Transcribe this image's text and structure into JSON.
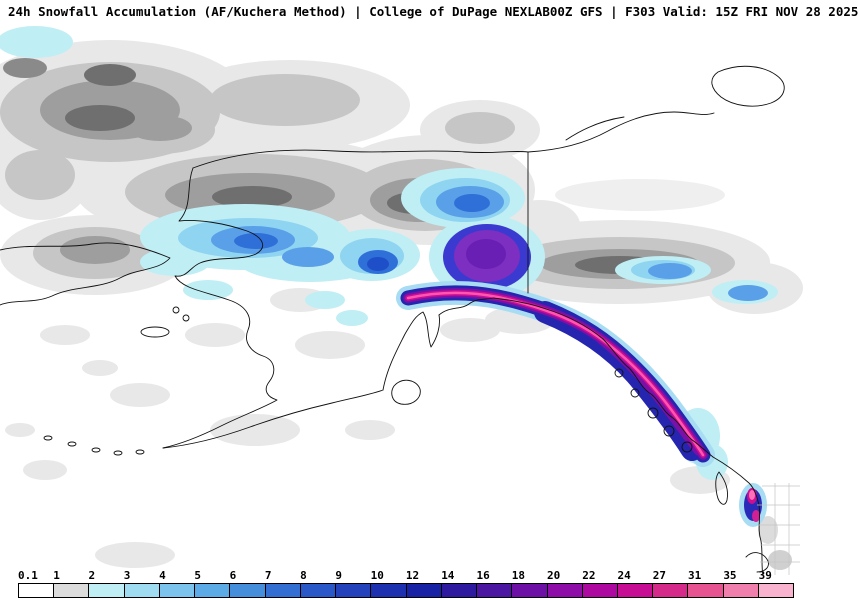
{
  "header": {
    "left": "24h Snowfall Accumulation (AF/Kuchera Method) | College of DuPage NEXLAB",
    "right": "00Z GFS | F303 Valid: 15Z FRI NOV 28 2025"
  },
  "legend": {
    "labels": [
      "0.1",
      "1",
      "2",
      "3",
      "4",
      "5",
      "6",
      "7",
      "8",
      "9",
      "10",
      "12",
      "14",
      "16",
      "18",
      "20",
      "22",
      "24",
      "27",
      "31",
      "35",
      "39"
    ],
    "colors": [
      "#ffffff",
      "#dcdcdc",
      "#bfeef4",
      "#9fdcf2",
      "#7cc4ee",
      "#5caae6",
      "#458edc",
      "#336fd2",
      "#2a58c8",
      "#2342bc",
      "#1d30b0",
      "#1822a4",
      "#2d1a9e",
      "#4b16a2",
      "#6d11a6",
      "#8e0ca8",
      "#ad09a0",
      "#c60d94",
      "#d62a8a",
      "#e65390",
      "#f07fae",
      "#f9b3cf"
    ]
  }
}
